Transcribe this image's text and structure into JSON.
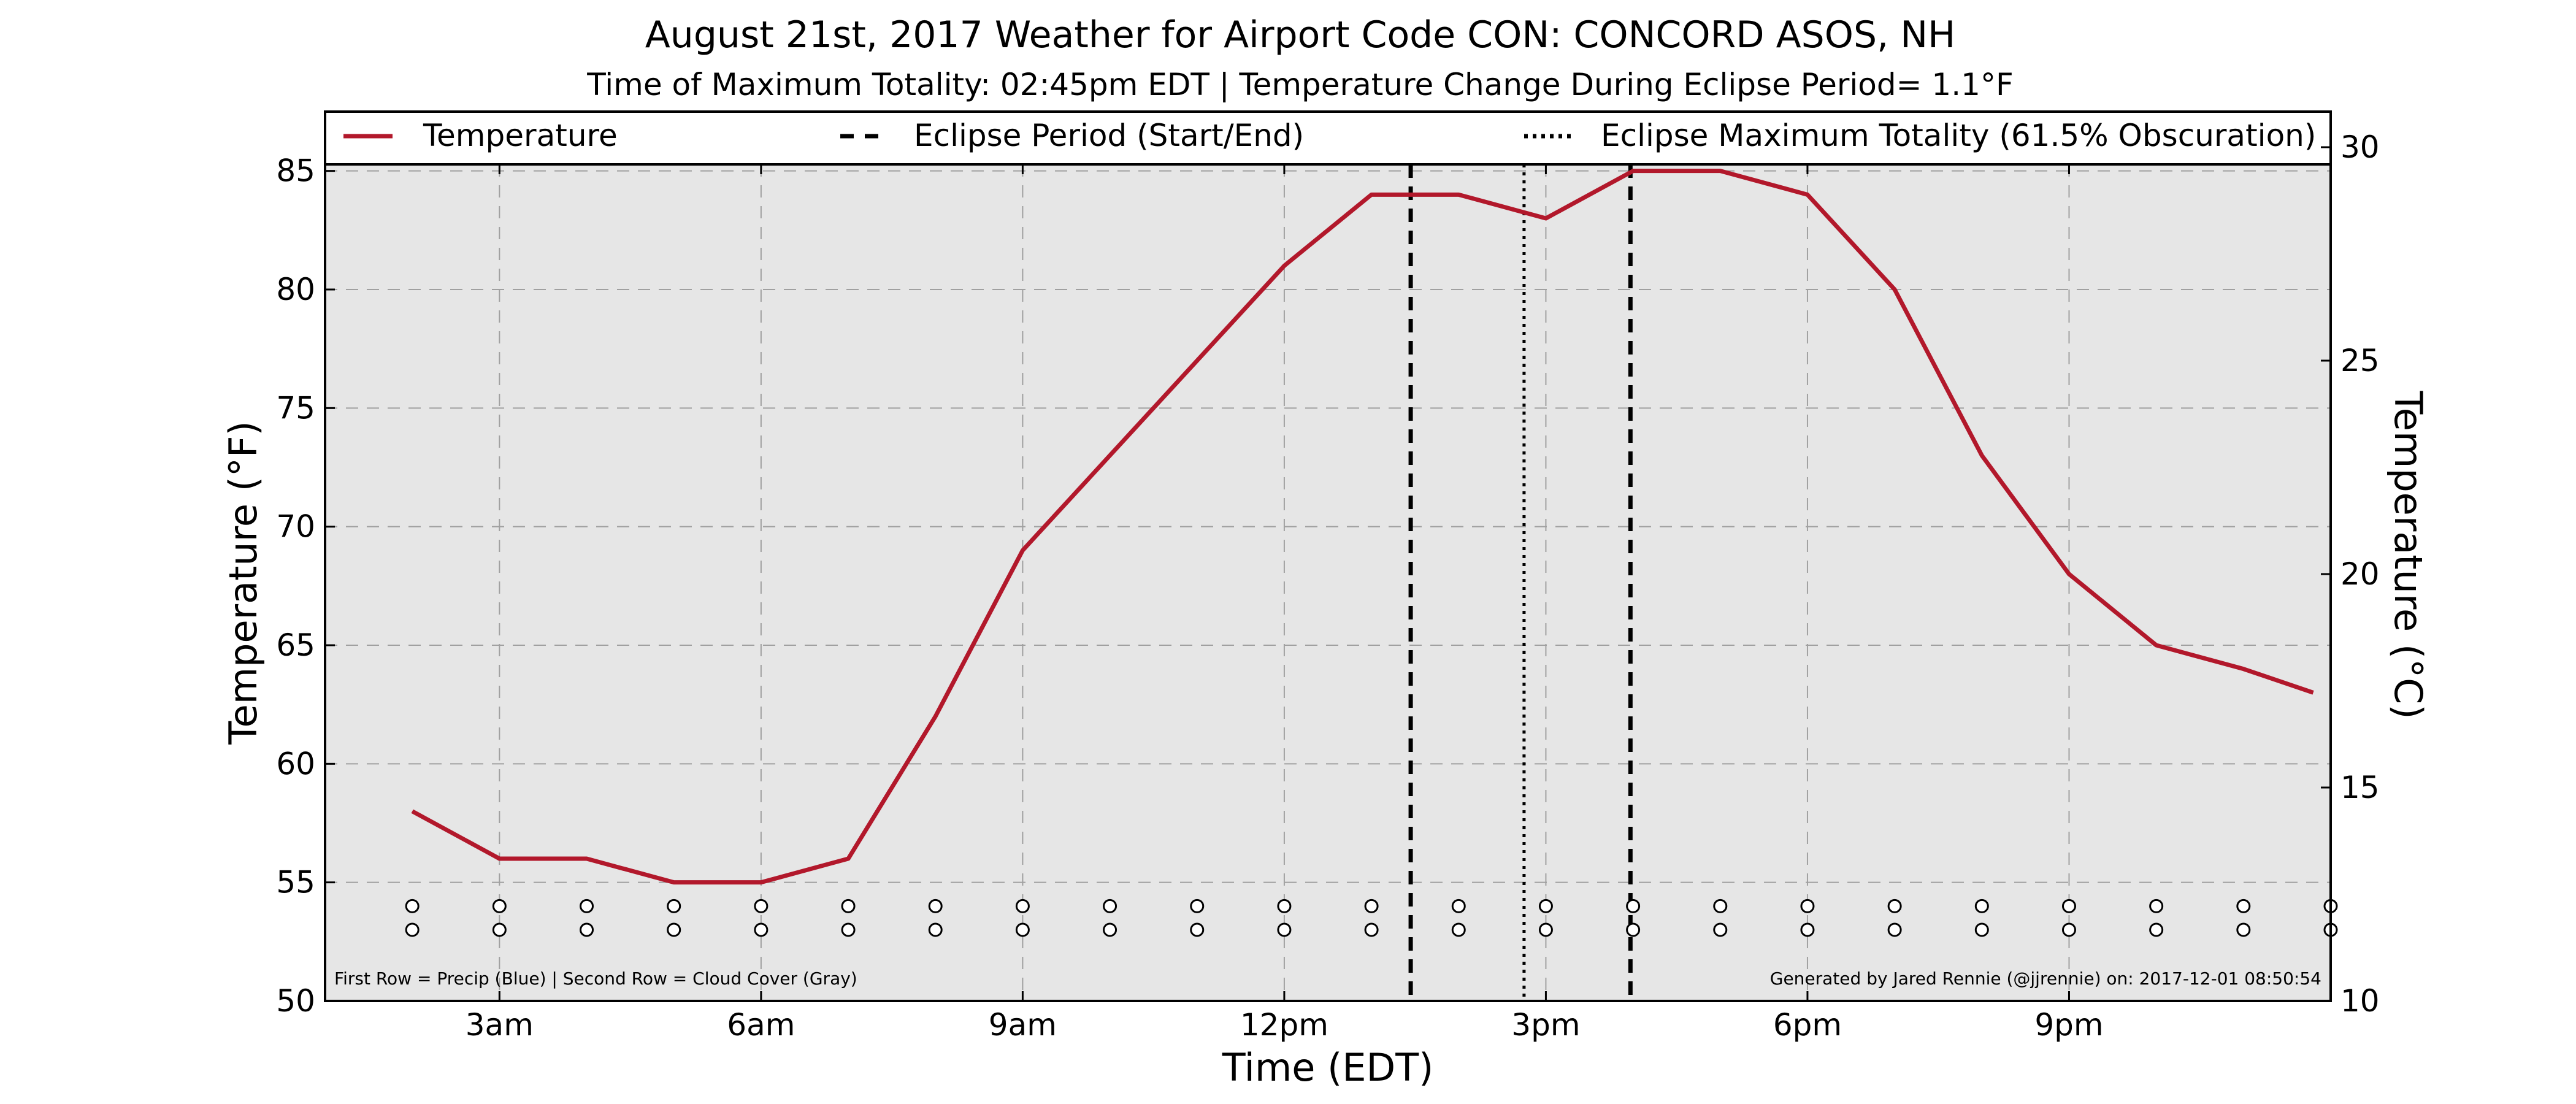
{
  "chart_data": {
    "type": "line",
    "title": "August 21st, 2017 Weather for Airport Code CON: CONCORD ASOS, NH",
    "subtitle": "Time of Maximum Totality: 02:45pm EDT | Temperature Change During Eclipse Period= 1.1°F",
    "xlabel": "Time (EDT)",
    "ylabel": "Temperature (°F)",
    "ylabel_right": "Temperature (°C)",
    "xlim": [
      1,
      24
    ],
    "ylim": [
      50,
      87.5
    ],
    "ylim_right_c": [
      10,
      30.83
    ],
    "x_ticks": [
      {
        "x": 3,
        "label": "3am"
      },
      {
        "x": 6,
        "label": "6am"
      },
      {
        "x": 9,
        "label": "9am"
      },
      {
        "x": 12,
        "label": "12pm"
      },
      {
        "x": 15,
        "label": "3pm"
      },
      {
        "x": 18,
        "label": "6pm"
      },
      {
        "x": 21,
        "label": "9pm"
      }
    ],
    "y_ticks_f": [
      50,
      55,
      60,
      65,
      70,
      75,
      80,
      85
    ],
    "y_ticks_c": [
      10,
      15,
      20,
      25,
      30
    ],
    "grid": true,
    "legend_position": "top",
    "series": [
      {
        "name": "Temperature",
        "color": "#b2182b",
        "x": [
          2,
          3,
          4,
          5,
          6,
          7,
          8,
          9,
          10,
          11,
          12,
          13,
          14,
          15,
          16,
          17,
          18,
          19,
          20,
          21,
          22,
          23,
          23.8
        ],
        "values": [
          58,
          56,
          56,
          55,
          55,
          56,
          62,
          69,
          73,
          77,
          81,
          84,
          84,
          83,
          85,
          85,
          84,
          80,
          73,
          68,
          65,
          64,
          63
        ]
      }
    ],
    "eclipse": {
      "start_label": "Eclipse Period (Start/End)",
      "max_label": "Eclipse Maximum Totality (61.5% Obscuration)",
      "start_x": 13.45,
      "end_x": 15.97,
      "max_x": 14.75
    },
    "marker_rows": {
      "x": [
        2,
        3,
        4,
        5,
        6,
        7,
        8,
        9,
        10,
        11,
        12,
        13,
        14,
        15,
        16,
        17,
        18,
        19,
        20,
        21,
        22,
        23,
        24
      ],
      "row_values_f": [
        54,
        53
      ]
    },
    "footnote_left": "First Row = Precip (Blue) | Second Row = Cloud Cover (Gray)",
    "footnote_right": "Generated by Jared Rennie (@jjrennie) on: 2017-12-01 08:50:54"
  },
  "colors": {
    "plot_bg": "#e6e6e6",
    "grid": "#a0a0a0",
    "line": "#b2182b",
    "eclipse": "#000000"
  }
}
